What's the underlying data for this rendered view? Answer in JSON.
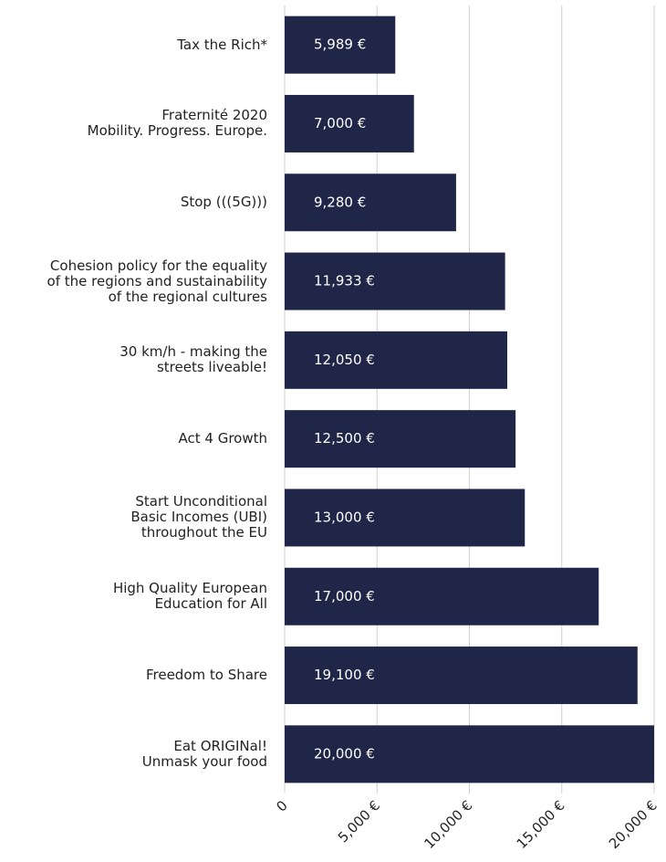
{
  "chart_data": {
    "type": "bar",
    "orientation": "horizontal",
    "categories": [
      "Tax the Rich*",
      "Fraternité 2020\nMobility. Progress. Europe.",
      "Stop (((5G)))",
      "Cohesion policy for the equality\nof the regions and sustainability\nof the regional cultures",
      "30 km/h - making the\nstreets liveable!",
      "Act 4 Growth",
      "Start Unconditional\nBasic Incomes (UBI)\nthroughout the EU",
      "High Quality European\nEducation for All",
      "Freedom to Share",
      "Eat ORIGINal!\nUnmask your food"
    ],
    "values": [
      5989,
      7000,
      9280,
      11933,
      12050,
      12500,
      13000,
      17000,
      19100,
      20000
    ],
    "value_labels": [
      "5,989 €",
      "7,000 €",
      "9,280 €",
      "11,933 €",
      "12,050 €",
      "12,500 €",
      "13,000 €",
      "17,000 €",
      "19,100 €",
      "20,000 €"
    ],
    "color": "#1f2647",
    "xlim": [
      0,
      20000
    ],
    "xticks": [
      0,
      {
        "value": 5000,
        "label": "5,000 €"
      },
      {
        "value": 10000,
        "label": "10,000 €"
      },
      {
        "value": 15000,
        "label": "15,000 €"
      },
      {
        "value": 20000,
        "label": "20,000 €"
      }
    ],
    "grid": true
  }
}
